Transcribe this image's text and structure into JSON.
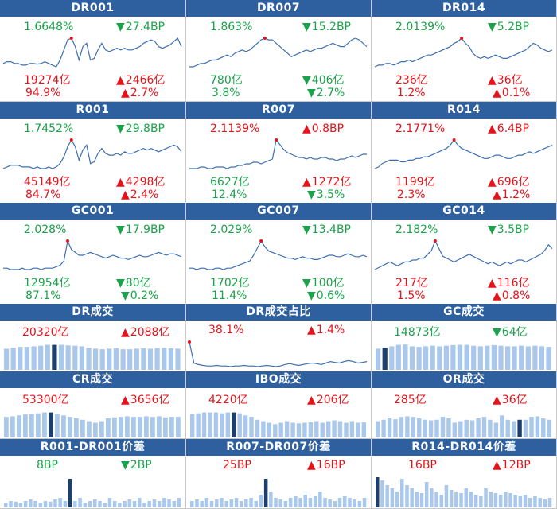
{
  "colors": {
    "header_bg": "#2e5f9e",
    "green": "#1aa34a",
    "red": "#e8131a",
    "line": "#3d6fb0",
    "bar": "#a9c8ec",
    "bar_highlight": "#1d3f6e",
    "peak_dot": "#e8131a"
  },
  "rate_panels": [
    {
      "title": "DR001",
      "rate": "1.6648%",
      "rate_color": "green",
      "change": "27.4BP",
      "change_dir": "down",
      "volume": "19274亿",
      "volume_color": "red",
      "vol_change": "2466亿",
      "vol_change_dir": "up",
      "share": "94.9%",
      "share_color": "red",
      "share_change": "2.7%",
      "share_change_dir": "up",
      "series": [
        0.5,
        0.55,
        0.55,
        0.5,
        0.5,
        0.45,
        0.45,
        0.5,
        0.5,
        0.48,
        0.5,
        0.55,
        0.5,
        0.45,
        0.4,
        0.6,
        0.9,
        1.2,
        1.25,
        1.0,
        0.6,
        1.0,
        1.1,
        0.6,
        0.65,
        0.9,
        1.1,
        0.9,
        0.85,
        0.9,
        0.95,
        0.9,
        0.95,
        0.9,
        0.9,
        0.95,
        1.0,
        1.1,
        1.15,
        1.2,
        1.15,
        1.0,
        0.95,
        1.0,
        1.05,
        1.15,
        1.25,
        1.0
      ]
    },
    {
      "title": "DR007",
      "rate": "1.863%",
      "rate_color": "green",
      "change": "15.2BP",
      "change_dir": "down",
      "volume": "780亿",
      "volume_color": "green",
      "vol_change": "406亿",
      "vol_change_dir": "down",
      "share": "3.8%",
      "share_color": "green",
      "share_change": "2.7%",
      "share_change_dir": "down",
      "series": [
        0.4,
        0.4,
        0.45,
        0.5,
        0.5,
        0.55,
        0.6,
        0.6,
        0.65,
        0.7,
        0.75,
        0.7,
        0.8,
        0.85,
        0.9,
        0.85,
        0.9,
        1.0,
        1.1,
        1.2,
        1.25,
        1.2,
        1.2,
        1.1,
        1.0,
        0.9,
        0.8,
        0.7,
        0.75,
        0.8,
        0.85,
        0.9,
        0.85,
        0.9,
        0.95,
        0.95,
        1.0,
        1.05,
        1.1,
        1.05,
        1.0,
        1.0,
        1.1,
        1.2,
        1.25,
        1.2,
        1.1,
        1.0
      ]
    },
    {
      "title": "DR014",
      "rate": "2.0139%",
      "rate_color": "green",
      "change": "5.2BP",
      "change_dir": "down",
      "volume": "236亿",
      "volume_color": "red",
      "vol_change": "36亿",
      "vol_change_dir": "up",
      "share": "1.2%",
      "share_color": "red",
      "share_change": "0.1%",
      "share_change_dir": "up",
      "series": [
        0.4,
        0.45,
        0.45,
        0.5,
        0.5,
        0.45,
        0.5,
        0.55,
        0.55,
        0.6,
        0.55,
        0.6,
        0.65,
        0.7,
        0.75,
        0.75,
        0.8,
        0.85,
        0.9,
        0.95,
        1.0,
        1.1,
        1.15,
        1.25,
        1.1,
        1.0,
        0.8,
        0.7,
        0.65,
        0.7,
        0.65,
        0.7,
        0.75,
        0.7,
        0.65,
        0.65,
        0.7,
        0.75,
        0.8,
        0.85,
        0.9,
        1.0,
        1.1,
        1.05,
        0.95,
        0.9,
        0.85,
        0.9
      ]
    },
    {
      "title": "R001",
      "rate": "1.7452%",
      "rate_color": "green",
      "change": "29.8BP",
      "change_dir": "down",
      "volume": "45149亿",
      "volume_color": "red",
      "vol_change": "4298亿",
      "vol_change_dir": "up",
      "share": "84.7%",
      "share_color": "red",
      "share_change": "2.4%",
      "share_change_dir": "up",
      "series": [
        0.45,
        0.5,
        0.55,
        0.55,
        0.55,
        0.5,
        0.5,
        0.5,
        0.45,
        0.5,
        0.45,
        0.45,
        0.5,
        0.45,
        0.5,
        0.6,
        0.8,
        1.1,
        1.3,
        1.1,
        0.7,
        1.0,
        1.15,
        0.6,
        0.65,
        0.9,
        1.05,
        0.9,
        0.85,
        0.85,
        0.9,
        0.85,
        0.95,
        0.9,
        0.9,
        0.95,
        1.0,
        1.05,
        1.0,
        1.05,
        1.0,
        0.95,
        1.0,
        1.05,
        1.1,
        1.15,
        1.1,
        0.95
      ]
    },
    {
      "title": "R007",
      "rate": "2.1139%",
      "rate_color": "red",
      "change": "0.8BP",
      "change_dir": "up",
      "volume": "6627亿",
      "volume_color": "green",
      "vol_change": "1272亿",
      "vol_change_dir": "up",
      "share": "12.4%",
      "share_color": "green",
      "share_change": "3.5%",
      "share_change_dir": "down",
      "series": [
        0.4,
        0.4,
        0.4,
        0.45,
        0.45,
        0.4,
        0.4,
        0.45,
        0.45,
        0.45,
        0.4,
        0.45,
        0.45,
        0.5,
        0.5,
        0.55,
        0.55,
        0.6,
        0.6,
        0.55,
        0.6,
        0.65,
        0.7,
        1.3,
        1.15,
        1.0,
        0.9,
        0.85,
        0.8,
        0.75,
        0.75,
        0.7,
        0.75,
        0.7,
        0.7,
        0.75,
        0.75,
        0.7,
        0.7,
        0.65,
        0.7,
        0.7,
        0.75,
        0.8,
        0.75,
        0.8,
        0.85,
        0.85
      ]
    },
    {
      "title": "R014",
      "rate": "2.1771%",
      "rate_color": "red",
      "change": "6.4BP",
      "change_dir": "up",
      "volume": "1199亿",
      "volume_color": "red",
      "vol_change": "696亿",
      "vol_change_dir": "up",
      "share": "2.3%",
      "share_color": "red",
      "share_change": "1.2%",
      "share_change_dir": "up",
      "series": [
        0.5,
        0.55,
        0.65,
        0.7,
        0.75,
        0.75,
        0.75,
        0.7,
        0.7,
        0.75,
        0.75,
        0.8,
        0.8,
        0.85,
        0.85,
        0.9,
        0.95,
        1.0,
        1.05,
        1.1,
        1.2,
        1.35,
        1.2,
        1.1,
        1.05,
        1.0,
        0.95,
        0.9,
        0.85,
        0.8,
        0.8,
        0.85,
        0.9,
        0.9,
        0.85,
        0.8,
        0.8,
        0.85,
        0.9,
        0.9,
        0.95,
        1.0,
        0.95,
        1.0,
        1.05,
        1.1,
        1.15,
        1.2
      ]
    },
    {
      "title": "GC001",
      "rate": "2.028%",
      "rate_color": "green",
      "change": "17.9BP",
      "change_dir": "down",
      "volume": "12954亿",
      "volume_color": "green",
      "vol_change": "80亿",
      "vol_change_dir": "down",
      "share": "87.1%",
      "share_color": "green",
      "share_change": "0.2%",
      "share_change_dir": "down",
      "series": [
        0.35,
        0.35,
        0.3,
        0.3,
        0.3,
        0.35,
        0.3,
        0.3,
        0.35,
        0.35,
        0.3,
        0.35,
        0.35,
        0.35,
        0.4,
        0.45,
        0.6,
        1.3,
        1.0,
        0.9,
        0.8,
        0.8,
        0.85,
        0.9,
        0.85,
        0.8,
        0.75,
        0.7,
        0.75,
        0.8,
        0.75,
        0.7,
        0.7,
        0.65,
        0.7,
        0.75,
        0.8,
        0.75,
        0.75,
        0.8,
        0.85,
        0.9,
        0.85,
        0.8,
        0.85,
        0.85,
        0.8,
        0.75
      ]
    },
    {
      "title": "GC007",
      "rate": "2.029%",
      "rate_color": "green",
      "change": "13.4BP",
      "change_dir": "down",
      "volume": "1702亿",
      "volume_color": "green",
      "vol_change": "100亿",
      "vol_change_dir": "down",
      "share": "11.4%",
      "share_color": "green",
      "share_change": "0.6%",
      "share_change_dir": "down",
      "series": [
        0.35,
        0.35,
        0.3,
        0.35,
        0.35,
        0.3,
        0.3,
        0.35,
        0.35,
        0.3,
        0.35,
        0.35,
        0.4,
        0.45,
        0.5,
        0.55,
        0.6,
        0.8,
        1.05,
        1.3,
        1.1,
        0.95,
        0.9,
        0.85,
        0.8,
        0.75,
        0.7,
        0.7,
        0.65,
        0.7,
        0.75,
        0.7,
        0.7,
        0.65,
        0.65,
        0.7,
        0.75,
        0.8,
        0.8,
        0.75,
        0.75,
        0.8,
        0.85,
        0.8,
        0.75,
        0.75,
        0.8,
        0.75
      ]
    },
    {
      "title": "GC014",
      "rate": "2.182%",
      "rate_color": "green",
      "change": "3.5BP",
      "change_dir": "down",
      "volume": "217亿",
      "volume_color": "red",
      "vol_change": "116亿",
      "vol_change_dir": "up",
      "share": "1.5%",
      "share_color": "red",
      "share_change": "0.8%",
      "share_change_dir": "up",
      "series": [
        0.55,
        0.6,
        0.65,
        0.7,
        0.75,
        0.7,
        0.65,
        0.7,
        0.75,
        0.75,
        0.8,
        0.8,
        0.85,
        0.85,
        0.95,
        1.05,
        1.3,
        1.1,
        0.9,
        0.85,
        0.8,
        0.75,
        0.8,
        0.85,
        0.9,
        0.95,
        0.9,
        0.85,
        0.8,
        0.75,
        0.7,
        0.75,
        0.7,
        0.65,
        0.7,
        0.75,
        0.7,
        0.75,
        0.8,
        0.8,
        0.75,
        0.8,
        0.85,
        0.9,
        0.95,
        1.05,
        1.2,
        1.1
      ]
    }
  ],
  "volume_panels": [
    {
      "title": "DR成交",
      "kind": "bar",
      "left": "20320亿",
      "left_color": "red",
      "right": "2088亿",
      "right_color": "red",
      "right_dir": "up",
      "series": [
        0.72,
        0.75,
        0.78,
        0.78,
        0.8,
        0.82,
        0.85,
        0.85,
        0.85,
        0.83,
        0.82,
        0.8,
        0.75,
        0.72,
        0.7,
        0.72,
        0.74,
        0.7,
        0.7,
        0.72,
        0.73,
        0.72,
        0.74,
        0.75,
        0.73,
        0.72
      ],
      "highlight": 7
    },
    {
      "title": "DR成交占比",
      "kind": "line",
      "left": "38.1%",
      "left_color": "red",
      "right": "1.4%",
      "right_color": "red",
      "right_dir": "up",
      "series": [
        1.0,
        0.3,
        0.25,
        0.22,
        0.2,
        0.2,
        0.22,
        0.2,
        0.2,
        0.18,
        0.2,
        0.2,
        0.22,
        0.2,
        0.2,
        0.18,
        0.2,
        0.22,
        0.2,
        0.18,
        0.2,
        0.25,
        0.28,
        0.25,
        0.22,
        0.25,
        0.28,
        0.3,
        0.28,
        0.25,
        0.3,
        0.35,
        0.32,
        0.3,
        0.35,
        0.38,
        0.35,
        0.3,
        0.32,
        0.35
      ]
    },
    {
      "title": "GC成交",
      "kind": "bar",
      "left": "14873亿",
      "left_color": "green",
      "right": "64亿",
      "right_color": "green",
      "right_dir": "down",
      "series": [
        0.72,
        0.75,
        0.8,
        0.85,
        0.86,
        0.8,
        0.78,
        0.8,
        0.82,
        0.8,
        0.82,
        0.84,
        0.85,
        0.85,
        0.82,
        0.8,
        0.82,
        0.84,
        0.82,
        0.8,
        0.8,
        0.82,
        0.8,
        0.82,
        0.8,
        0.78
      ],
      "highlight": 1
    },
    {
      "title": "CR成交",
      "kind": "bar",
      "left": "53300亿",
      "left_color": "red",
      "right": "3656亿",
      "right_color": "red",
      "right_dir": "up",
      "series": [
        0.7,
        0.72,
        0.75,
        0.78,
        0.8,
        0.82,
        0.85,
        0.85,
        0.8,
        0.75,
        0.7,
        0.65,
        0.6,
        0.55,
        0.5,
        0.55,
        0.65,
        0.68,
        0.7,
        0.72,
        0.7,
        0.7,
        0.72,
        0.7,
        0.72,
        0.68,
        0.7,
        0.7
      ],
      "highlight": 7
    },
    {
      "title": "IBO成交",
      "kind": "bar",
      "left": "4220亿",
      "left_color": "red",
      "right": "206亿",
      "right_color": "red",
      "right_dir": "up",
      "series": [
        0.8,
        0.82,
        0.85,
        0.85,
        0.85,
        0.82,
        0.85,
        0.85,
        0.82,
        0.75,
        0.7,
        0.6,
        0.55,
        0.5,
        0.45,
        0.5,
        0.55,
        0.5,
        0.48,
        0.5,
        0.52,
        0.55,
        0.5,
        0.55,
        0.58,
        0.55,
        0.5,
        0.55,
        0.5,
        0.52
      ],
      "highlight": 7
    },
    {
      "title": "OR成交",
      "kind": "bar",
      "left": "285亿",
      "left_color": "red",
      "right": "36亿",
      "right_color": "red",
      "right_dir": "up",
      "series": [
        0.55,
        0.6,
        0.65,
        0.62,
        0.7,
        0.72,
        0.7,
        0.65,
        0.6,
        0.58,
        0.6,
        0.7,
        0.65,
        0.5,
        0.55,
        0.6,
        0.58,
        0.65,
        0.7,
        0.6,
        0.5,
        0.75,
        0.6,
        0.55,
        0.6,
        0.6,
        0.7,
        0.72,
        0.65,
        0.6
      ],
      "highlight": 24
    },
    {
      "title": "R001-DR001价差",
      "kind": "bar",
      "left": "8BP",
      "left_color": "green",
      "right": "2BP",
      "right_color": "green",
      "right_dir": "down",
      "series": [
        0.15,
        0.2,
        0.18,
        0.15,
        0.2,
        0.25,
        0.2,
        0.15,
        0.2,
        0.18,
        0.25,
        0.3,
        0.2,
        0.9,
        0.2,
        0.3,
        0.15,
        0.2,
        0.25,
        0.2,
        0.15,
        0.3,
        0.2,
        0.15,
        0.2,
        0.25,
        0.2,
        0.3,
        0.15,
        0.2,
        0.25,
        0.2,
        0.3,
        0.25,
        0.2,
        0.3
      ],
      "highlight": 13
    },
    {
      "title": "R007-DR007价差",
      "kind": "bar",
      "left": "25BP",
      "left_color": "red",
      "right": "16BP",
      "right_color": "red",
      "right_dir": "up",
      "series": [
        0.2,
        0.25,
        0.2,
        0.3,
        0.2,
        0.25,
        0.3,
        0.2,
        0.25,
        0.3,
        0.2,
        0.25,
        0.3,
        0.2,
        0.4,
        0.9,
        0.5,
        0.3,
        0.25,
        0.2,
        0.3,
        0.35,
        0.3,
        0.4,
        0.3,
        0.35,
        0.5,
        0.3,
        0.25,
        0.2,
        0.3,
        0.35,
        0.3,
        0.25,
        0.2,
        0.3
      ],
      "highlight": 15
    },
    {
      "title": "R014-DR014价差",
      "kind": "bar",
      "left": "16BP",
      "left_color": "red",
      "right": "12BP",
      "right_color": "red",
      "right_dir": "up",
      "series": [
        0.95,
        0.85,
        0.7,
        0.6,
        0.5,
        0.9,
        0.7,
        0.6,
        0.5,
        0.45,
        0.8,
        0.6,
        0.5,
        0.4,
        0.7,
        0.55,
        0.5,
        0.45,
        0.6,
        0.5,
        0.4,
        0.35,
        0.6,
        0.5,
        0.45,
        0.4,
        0.5,
        0.45,
        0.4,
        0.35,
        0.4,
        0.3,
        0.35,
        0.3,
        0.25,
        0.3
      ],
      "highlight": 0
    }
  ]
}
